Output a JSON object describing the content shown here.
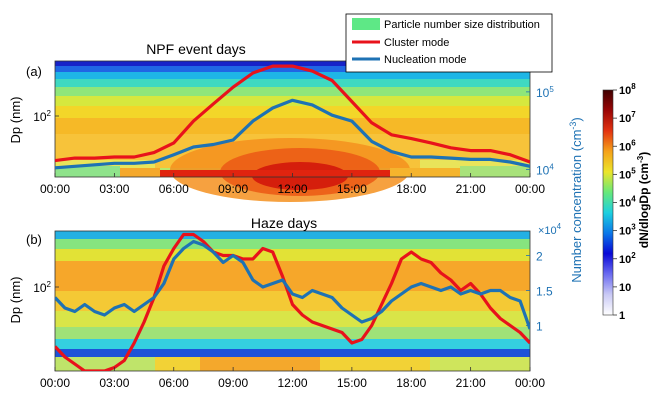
{
  "chart_data": [
    {
      "type": "heatmap",
      "panel_label": "(a)",
      "title": "NPF event days",
      "ylabel": "Dp (nm)",
      "y_tick_labels": [
        "10"
      ],
      "y_tick_exponents": [
        "2"
      ],
      "x_tick_labels": [
        "00:00",
        "03:00",
        "06:00",
        "09:00",
        "12:00",
        "15:00",
        "18:00",
        "21:00",
        "00:00"
      ],
      "xlim_hours": [
        0,
        24
      ],
      "ylabel_right": "Number concentration (cm",
      "ylabel_right_exp": "-3",
      "ylabel_right_close": ")",
      "yscale_right": "log",
      "right_tick_labels": [
        "10",
        "10"
      ],
      "right_tick_exponents": [
        "5",
        "4"
      ],
      "ylim_right": [
        8000,
        250000
      ],
      "legend": {
        "placement": "top-right",
        "entries": [
          "Particle number size distribution",
          "Cluster mode",
          "Nucleation mode"
        ]
      },
      "series": [
        {
          "name": "Cluster mode",
          "color": "#e8121b",
          "x": [
            0,
            1,
            2,
            3,
            4,
            5,
            6,
            7,
            8,
            9,
            10,
            11,
            12,
            13,
            14,
            15,
            16,
            17,
            18,
            19,
            20,
            21,
            22,
            23,
            24
          ],
          "y": [
            13000,
            14000,
            14000,
            14500,
            14500,
            16500,
            22000,
            42000,
            70000,
            115000,
            175000,
            215000,
            215000,
            185000,
            140000,
            75000,
            40000,
            28000,
            25000,
            22000,
            19000,
            17500,
            17500,
            15500,
            12500
          ]
        },
        {
          "name": "Nucleation mode",
          "color": "#1e72b4",
          "x": [
            0,
            1,
            2,
            3,
            4,
            5,
            6,
            7,
            8,
            9,
            10,
            11,
            12,
            13,
            14,
            15,
            16,
            17,
            18,
            19,
            20,
            21,
            22,
            23,
            24
          ],
          "y": [
            10500,
            11000,
            11500,
            12000,
            12000,
            12500,
            15500,
            19500,
            21000,
            24000,
            42000,
            62000,
            78000,
            68000,
            50000,
            42000,
            23000,
            17000,
            14500,
            14500,
            14000,
            13500,
            13500,
            12500,
            11000
          ]
        }
      ]
    },
    {
      "type": "heatmap",
      "panel_label": "(b)",
      "title": "Haze days",
      "ylabel": "Dp (nm)",
      "y_tick_labels": [
        "10"
      ],
      "y_tick_exponents": [
        "2"
      ],
      "x_tick_labels": [
        "00:00",
        "03:00",
        "06:00",
        "09:00",
        "12:00",
        "15:00",
        "18:00",
        "21:00",
        "00:00"
      ],
      "xlim_hours": [
        0,
        24
      ],
      "ylabel_right": "Number concentration (cm",
      "ylabel_right_exp": "-3",
      "ylabel_right_close": ")",
      "right_multiplier": "×10",
      "right_multiplier_exp": "4",
      "right_tick_labels": [
        "2",
        "1.5",
        "1"
      ],
      "ylim_right": [
        0.35,
        2.35
      ],
      "series": [
        {
          "name": "Cluster mode",
          "color": "#e8121b",
          "x": [
            0,
            0.5,
            1,
            1.5,
            2,
            2.5,
            3,
            3.5,
            4,
            4.5,
            5,
            5.5,
            6,
            6.5,
            7,
            7.5,
            8,
            8.5,
            9,
            9.5,
            10,
            10.5,
            11,
            11.5,
            12,
            12.5,
            13,
            13.5,
            14,
            14.5,
            15,
            15.5,
            16,
            16.5,
            17,
            17.5,
            18,
            18.5,
            19,
            19.5,
            20,
            20.5,
            21,
            21.5,
            22,
            22.5,
            23,
            23.5,
            24
          ],
          "y": [
            0.7,
            0.55,
            0.45,
            0.35,
            0.35,
            0.35,
            0.4,
            0.5,
            0.75,
            1.05,
            1.4,
            1.85,
            2.1,
            2.3,
            2.3,
            2.2,
            2.05,
            2.0,
            2.0,
            1.95,
            1.95,
            2.1,
            2.05,
            1.7,
            1.3,
            1.15,
            1.05,
            1.0,
            0.95,
            0.9,
            0.75,
            0.8,
            1.0,
            1.3,
            1.6,
            1.95,
            2.05,
            1.95,
            1.9,
            1.75,
            1.65,
            1.5,
            1.6,
            1.45,
            1.25,
            1.1,
            1.0,
            0.9,
            0.75
          ]
        },
        {
          "name": "Nucleation mode",
          "color": "#1e72b4",
          "x": [
            0,
            0.5,
            1,
            1.5,
            2,
            2.5,
            3,
            3.5,
            4,
            4.5,
            5,
            5.5,
            6,
            6.5,
            7,
            7.5,
            8,
            8.5,
            9,
            9.5,
            10,
            10.5,
            11,
            11.5,
            12,
            12.5,
            13,
            13.5,
            14,
            14.5,
            15,
            15.5,
            16,
            16.5,
            17,
            17.5,
            18,
            18.5,
            19,
            19.5,
            20,
            20.5,
            21,
            21.5,
            22,
            22.5,
            23,
            23.5,
            24
          ],
          "y": [
            1.4,
            1.25,
            1.2,
            1.3,
            1.2,
            1.15,
            1.25,
            1.3,
            1.2,
            1.3,
            1.4,
            1.6,
            1.95,
            2.1,
            2.2,
            2.15,
            2.05,
            1.9,
            2.0,
            1.9,
            1.65,
            1.55,
            1.6,
            1.65,
            1.45,
            1.4,
            1.5,
            1.45,
            1.4,
            1.25,
            1.15,
            1.05,
            1.1,
            1.2,
            1.35,
            1.45,
            1.55,
            1.6,
            1.55,
            1.5,
            1.55,
            1.45,
            1.5,
            1.45,
            1.5,
            1.5,
            1.4,
            1.35,
            0.95
          ]
        }
      ]
    }
  ],
  "colorbar": {
    "label": "dN/dlogDp (cm",
    "label_exp": "-3",
    "label_close": ")",
    "ticks": [
      {
        "value": 8,
        "base": "10",
        "exp": "8"
      },
      {
        "value": 7,
        "base": "10",
        "exp": "7"
      },
      {
        "value": 6,
        "base": "10",
        "exp": "6"
      },
      {
        "value": 5,
        "base": "10",
        "exp": "5"
      },
      {
        "value": 4,
        "base": "10",
        "exp": "4"
      },
      {
        "value": 3,
        "base": "10",
        "exp": "3"
      },
      {
        "value": 2,
        "base": "10",
        "exp": "2"
      },
      {
        "value": 1,
        "base": "10",
        "exp": ""
      },
      {
        "value": 0,
        "base": "1",
        "exp": ""
      }
    ],
    "range_log": [
      0,
      8
    ],
    "colors": [
      "#ffffff",
      "#c9c9f5",
      "#6a6af0",
      "#0808d6",
      "#0b78e8",
      "#1dd0df",
      "#66e87a",
      "#ece52a",
      "#f5a21a",
      "#e33311",
      "#9a0606",
      "#3f0000"
    ]
  }
}
